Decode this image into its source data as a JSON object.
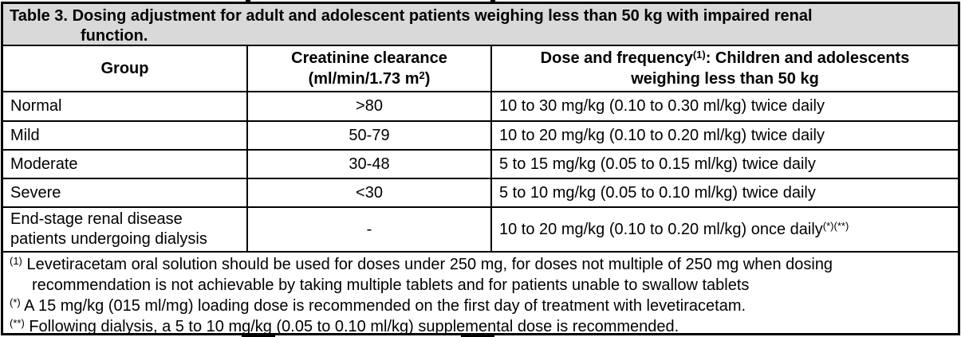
{
  "colors": {
    "title_background": "#d9d9d9",
    "border": "#000000",
    "text": "#000000",
    "body_background": "#ffffff"
  },
  "title": {
    "label": "Table 3.",
    "line1_rest": "Dosing adjustment for adult and adolescent patients weighing less than 50 kg with impaired renal",
    "line2": "function."
  },
  "header": {
    "group": "Group",
    "clearance_line1": "Creatinine clearance",
    "clearance_line2_pre": "(ml/min/1.73 m",
    "clearance_line2_sup": "2",
    "clearance_line2_post": ")",
    "dose_line1_pre": "Dose and frequency",
    "dose_line1_sup": "(1)",
    "dose_line1_post": ": Children and adolescents",
    "dose_line2": "weighing less than 50 kg"
  },
  "rows": [
    {
      "group": "Normal",
      "clearance": ">80",
      "dose": "10 to 30 mg/kg (0.10 to 0.30 ml/kg) twice daily",
      "dose_sup": ""
    },
    {
      "group": "Mild",
      "clearance": "50-79",
      "dose": "10 to 20 mg/kg (0.10 to 0.20 ml/kg) twice daily",
      "dose_sup": ""
    },
    {
      "group": "Moderate",
      "clearance": "30-48",
      "dose": "5 to 15 mg/kg (0.05 to 0.15 ml/kg) twice daily",
      "dose_sup": ""
    },
    {
      "group": "Severe",
      "clearance": "<30",
      "dose": "5 to 10 mg/kg (0.05 to 0.10 ml/kg) twice daily",
      "dose_sup": ""
    },
    {
      "group": "End-stage renal disease patients undergoing dialysis",
      "clearance": "-",
      "dose": "10 to 20 mg/kg (0.10 to 0.20 ml/kg) once daily",
      "dose_sup": "(*)(**)"
    }
  ],
  "footnotes": [
    {
      "marker": "(1)",
      "line1": "Levetiracetam oral solution should be used for doses under 250 mg, for doses not multiple of 250 mg when dosing",
      "line2": "recommendation is not achievable by taking multiple tablets and for patients unable to swallow tablets"
    },
    {
      "marker": "(*)",
      "line1": "A 15 mg/kg (015 ml/mg) loading dose is recommended on the first day of treatment with levetiracetam.",
      "line2": ""
    },
    {
      "marker": "(**)",
      "line1": "Following dialysis, a 5 to 10 mg/kg (0.05 to 0.10 ml/kg) supplemental dose is recommended.",
      "line2": ""
    }
  ]
}
